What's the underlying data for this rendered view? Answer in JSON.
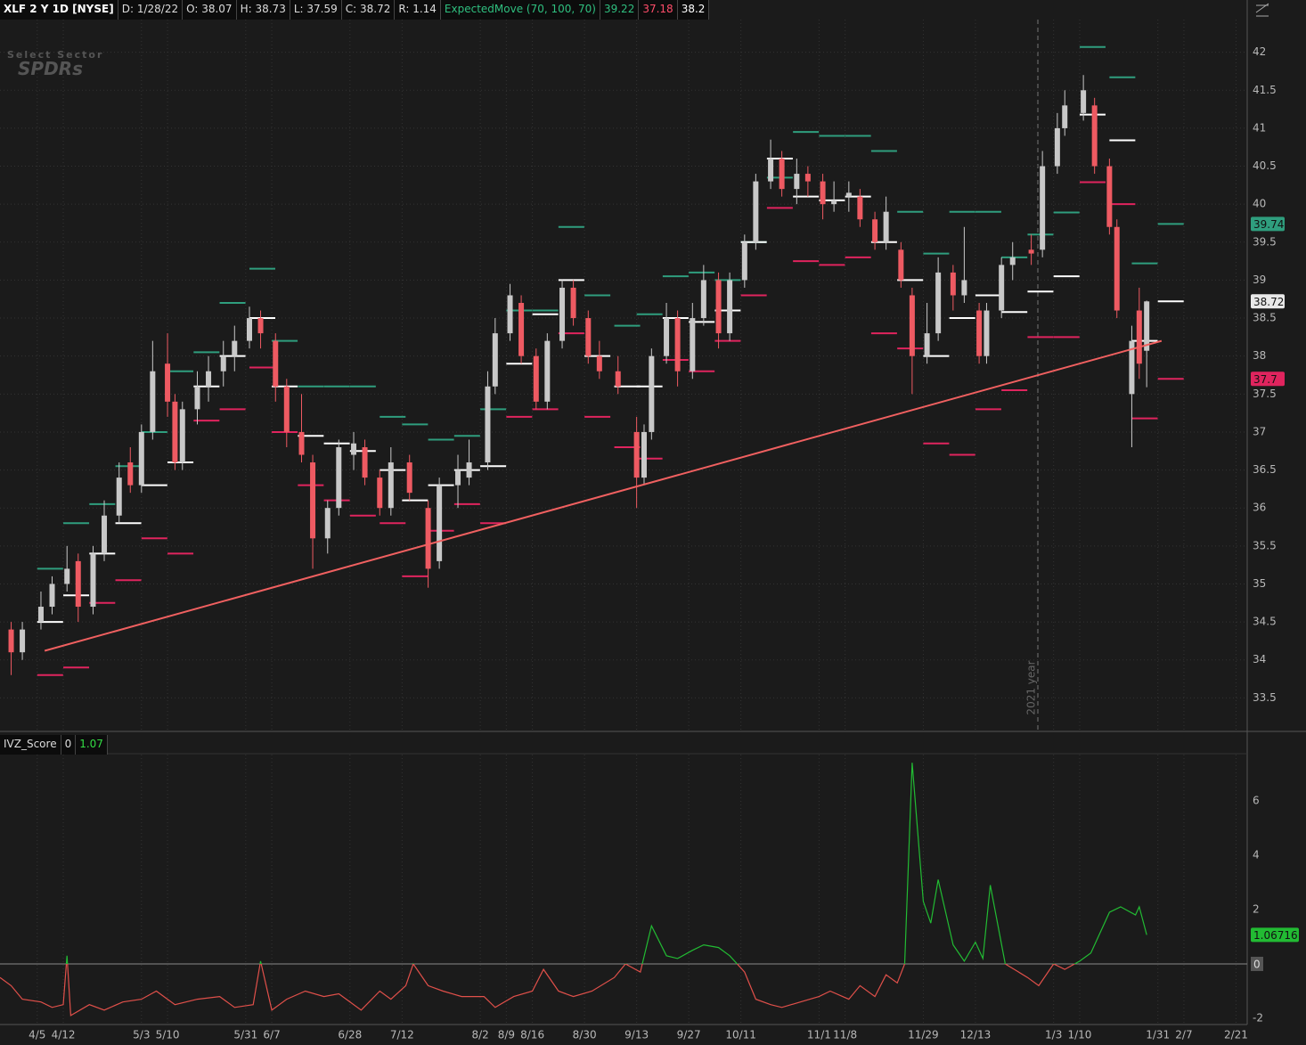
{
  "header": {
    "symbol": "XLF 2 Y 1D [NYSE]",
    "fields": [
      {
        "label": "D:",
        "value": "1/28/22"
      },
      {
        "label": "O:",
        "value": 38.07
      },
      {
        "label": "H:",
        "value": 38.73
      },
      {
        "label": "L:",
        "value": 37.59
      },
      {
        "label": "C:",
        "value": 38.72
      },
      {
        "label": "R:",
        "value": 1.14
      }
    ],
    "study": "ExpectedMove (70, 100, 70)",
    "study_values": [
      39.22,
      37.18,
      38.2
    ]
  },
  "logo": {
    "line1": "Select Sector",
    "line2": "SPDRs"
  },
  "chart_data": [
    {
      "type": "candlestick",
      "xlim": [
        "3/26",
        "2/24"
      ],
      "xticks": [
        "4/5",
        "4/12",
        "5/3",
        "5/10",
        "5/31",
        "6/7",
        "6/28",
        "7/12",
        "8/2",
        "8/9",
        "8/16",
        "8/30",
        "9/13",
        "9/27",
        "10/11",
        "11/1",
        "11/8",
        "11/29",
        "12/13",
        "1/3",
        "1/10",
        "1/31",
        "2/7",
        "2/21"
      ],
      "ylim": [
        33.07,
        42.43
      ],
      "yticks": [
        33.5,
        34,
        34.5,
        35,
        35.5,
        36,
        36.5,
        37,
        37.5,
        38,
        38.5,
        39,
        39.5,
        40,
        40.5,
        41,
        41.5,
        42
      ],
      "grid": true,
      "up_color": "#c8c8c8",
      "down_color": "#ee5a62",
      "x": [
        "3/29",
        "4/1",
        "4/6",
        "4/9",
        "4/13",
        "4/16",
        "4/20",
        "4/23",
        "4/27",
        "4/30",
        "5/3",
        "5/6",
        "5/10",
        "5/12",
        "5/14",
        "5/18",
        "5/21",
        "5/25",
        "5/28",
        "6/1",
        "6/4",
        "6/8",
        "6/11",
        "6/15",
        "6/18",
        "6/22",
        "6/25",
        "6/29",
        "7/2",
        "7/6",
        "7/9",
        "7/14",
        "7/19",
        "7/22",
        "7/27",
        "7/30",
        "8/4",
        "8/6",
        "8/10",
        "8/13",
        "8/17",
        "8/20",
        "8/24",
        "8/27",
        "8/31",
        "9/3",
        "9/8",
        "9/13",
        "9/15",
        "9/17",
        "9/21",
        "9/24",
        "9/28",
        "10/1",
        "10/5",
        "10/8",
        "10/12",
        "10/15",
        "10/19",
        "10/22",
        "10/26",
        "10/29",
        "11/2",
        "11/5",
        "11/9",
        "11/12",
        "11/16",
        "11/19",
        "11/23",
        "11/26",
        "11/30",
        "12/3",
        "12/7",
        "12/10",
        "12/14",
        "12/16",
        "12/20",
        "12/23",
        "12/28",
        "12/31",
        "1/4",
        "1/6",
        "1/11",
        "1/14",
        "1/18",
        "1/20",
        "1/24",
        "1/26",
        "1/28"
      ],
      "open": [
        34.4,
        34.1,
        34.5,
        34.7,
        35.0,
        35.3,
        34.7,
        35.4,
        35.9,
        36.6,
        36.3,
        37.0,
        37.9,
        37.4,
        36.6,
        37.3,
        37.6,
        37.8,
        38.0,
        38.2,
        38.5,
        38.2,
        37.6,
        37.0,
        36.6,
        35.6,
        36.0,
        36.7,
        36.8,
        36.4,
        36.0,
        36.6,
        36.0,
        35.3,
        36.3,
        36.4,
        36.6,
        37.6,
        38.3,
        38.7,
        38.0,
        37.4,
        38.2,
        38.9,
        38.5,
        38.0,
        37.8,
        37.0,
        36.4,
        37.0,
        38.0,
        38.5,
        37.8,
        38.5,
        39.0,
        38.3,
        39.0,
        39.5,
        40.3,
        40.6,
        40.2,
        40.4,
        40.3,
        40.0,
        40.1,
        40.1,
        39.8,
        39.5,
        39.4,
        38.8,
        38.0,
        38.3,
        39.1,
        38.8,
        38.6,
        38.0,
        38.6,
        39.2,
        39.4,
        39.4,
        40.5,
        41.0,
        41.2,
        41.3,
        40.5,
        39.7,
        37.5,
        38.6,
        38.07
      ],
      "high": [
        34.5,
        34.5,
        34.9,
        35.1,
        35.5,
        35.4,
        35.5,
        36.1,
        36.6,
        36.8,
        37.1,
        38.2,
        38.3,
        37.5,
        37.4,
        37.8,
        38.0,
        38.2,
        38.4,
        38.65,
        38.6,
        38.3,
        37.7,
        37.5,
        36.7,
        36.1,
        36.9,
        37.0,
        36.9,
        36.5,
        36.8,
        36.7,
        36.1,
        36.4,
        36.7,
        36.9,
        37.8,
        38.5,
        38.95,
        38.8,
        38.1,
        38.3,
        39.0,
        39.0,
        38.6,
        38.2,
        38.0,
        37.2,
        37.1,
        38.1,
        38.7,
        38.6,
        38.7,
        39.2,
        39.1,
        39.1,
        39.6,
        40.4,
        40.85,
        40.7,
        40.6,
        40.5,
        40.4,
        40.3,
        40.3,
        40.2,
        39.9,
        40.1,
        39.5,
        38.9,
        38.7,
        39.3,
        39.2,
        39.7,
        38.7,
        38.7,
        39.3,
        39.5,
        39.6,
        40.7,
        41.2,
        41.5,
        41.7,
        41.4,
        40.6,
        39.8,
        38.4,
        38.9,
        38.73
      ],
      "low": [
        33.8,
        34.0,
        34.4,
        34.6,
        34.9,
        34.5,
        34.6,
        35.3,
        35.8,
        36.2,
        36.2,
        36.9,
        37.2,
        36.5,
        36.5,
        37.1,
        37.4,
        37.6,
        37.8,
        38.1,
        38.1,
        37.4,
        36.8,
        36.6,
        35.2,
        35.4,
        35.9,
        36.5,
        36.3,
        35.9,
        35.9,
        36.1,
        34.95,
        35.2,
        36.0,
        36.3,
        36.5,
        37.5,
        38.2,
        37.9,
        37.3,
        37.3,
        38.1,
        38.4,
        37.9,
        37.7,
        37.5,
        36.0,
        36.3,
        36.9,
        37.9,
        37.6,
        37.7,
        38.4,
        38.1,
        38.2,
        38.9,
        39.4,
        40.2,
        40.1,
        40.0,
        40.1,
        39.8,
        39.9,
        39.9,
        39.7,
        39.4,
        39.4,
        38.9,
        37.5,
        37.9,
        38.2,
        38.6,
        38.7,
        37.9,
        37.9,
        38.5,
        39.0,
        39.2,
        39.3,
        40.4,
        40.9,
        41.1,
        40.4,
        39.6,
        38.5,
        36.8,
        37.7,
        37.59
      ],
      "close": [
        34.1,
        34.4,
        34.7,
        35.0,
        35.2,
        34.7,
        35.4,
        35.9,
        36.4,
        36.3,
        37.0,
        37.8,
        37.4,
        36.6,
        37.3,
        37.6,
        37.8,
        38.0,
        38.2,
        38.5,
        38.3,
        37.6,
        37.0,
        36.7,
        35.6,
        36.0,
        36.8,
        36.85,
        36.4,
        36.0,
        36.6,
        36.2,
        35.2,
        36.3,
        36.5,
        36.6,
        37.6,
        38.3,
        38.8,
        38.0,
        37.4,
        38.2,
        38.9,
        38.5,
        38.0,
        37.8,
        37.6,
        36.4,
        37.0,
        38.0,
        38.5,
        37.8,
        38.5,
        39.0,
        38.3,
        39.0,
        39.5,
        40.3,
        40.6,
        40.2,
        40.4,
        40.3,
        40.0,
        40.05,
        40.15,
        39.8,
        39.5,
        39.9,
        39.0,
        38.0,
        38.3,
        39.1,
        38.8,
        39.0,
        38.0,
        38.6,
        39.2,
        39.3,
        39.35,
        40.5,
        41.0,
        41.3,
        41.5,
        40.5,
        39.7,
        38.6,
        38.2,
        37.9,
        38.72
      ],
      "expected_move": {
        "x": [
          "4/5",
          "4/12",
          "4/19",
          "4/26",
          "5/3",
          "5/10",
          "5/17",
          "5/24",
          "6/1",
          "6/7",
          "6/14",
          "6/21",
          "6/28",
          "7/6",
          "7/12",
          "7/19",
          "7/26",
          "8/2",
          "8/9",
          "8/16",
          "8/23",
          "8/30",
          "9/7",
          "9/13",
          "9/20",
          "9/27",
          "10/4",
          "10/11",
          "10/18",
          "10/25",
          "11/1",
          "11/8",
          "11/15",
          "11/22",
          "11/29",
          "12/6",
          "12/13",
          "12/20",
          "12/27",
          "1/3",
          "1/10",
          "1/18",
          "1/24",
          "1/31"
        ],
        "upper": [
          35.2,
          35.8,
          36.05,
          36.55,
          37.0,
          37.8,
          38.05,
          38.7,
          39.15,
          38.2,
          37.6,
          37.6,
          37.6,
          37.2,
          37.1,
          36.9,
          36.95,
          37.3,
          38.6,
          38.6,
          39.7,
          38.8,
          38.4,
          38.55,
          39.05,
          39.1,
          39.0,
          39.5,
          40.35,
          40.95,
          40.9,
          40.9,
          40.7,
          39.9,
          39.35,
          39.9,
          39.9,
          39.3,
          39.6,
          39.89,
          42.07,
          41.67,
          39.22,
          39.74
        ],
        "mid": [
          34.5,
          34.85,
          35.4,
          35.8,
          36.3,
          36.6,
          37.6,
          38.0,
          38.5,
          37.6,
          36.95,
          36.85,
          36.75,
          36.5,
          36.1,
          36.3,
          36.5,
          36.55,
          37.9,
          38.55,
          39.0,
          38.0,
          37.6,
          37.6,
          38.5,
          38.45,
          38.6,
          39.5,
          40.6,
          40.1,
          40.05,
          40.1,
          39.5,
          39.0,
          38.0,
          38.5,
          38.8,
          38.58,
          38.85,
          39.05,
          41.18,
          40.84,
          38.2,
          38.72
        ],
        "lower": [
          33.8,
          33.9,
          34.75,
          35.05,
          35.6,
          35.4,
          37.15,
          37.3,
          37.85,
          37.0,
          36.3,
          36.1,
          35.9,
          35.8,
          35.1,
          35.7,
          36.05,
          35.8,
          37.2,
          37.3,
          38.3,
          37.2,
          36.8,
          36.65,
          37.95,
          37.8,
          38.2,
          38.8,
          39.95,
          39.25,
          39.2,
          39.3,
          38.3,
          38.1,
          36.85,
          36.7,
          37.3,
          37.55,
          38.25,
          38.25,
          40.29,
          40.0,
          37.18,
          37.7
        ],
        "upper_color": "#2f9e7e",
        "mid_color": "#ffffff",
        "lower_color": "#e0245e"
      },
      "trendline": {
        "x": [
          "4/7",
          "2/1"
        ],
        "values": [
          34.12,
          38.2
        ],
        "color": "#f06060"
      },
      "price_labels": [
        {
          "value": 39.74,
          "color": "#2f9e7e"
        },
        {
          "value": 38.72,
          "color": "#e8e8e8"
        },
        {
          "value": 37.7,
          "color": "#e0245e"
        }
      ],
      "annotation": "2021 year"
    },
    {
      "type": "line",
      "title": "IVZ_Score",
      "header_values": [
        0,
        1.07
      ],
      "xlim": [
        "3/26",
        "2/24"
      ],
      "ylim": [
        -2.23,
        7.7
      ],
      "yticks": [
        -2,
        0,
        2,
        4,
        6
      ],
      "grid": true,
      "series": [
        {
          "name": "IVZ_Score",
          "pos_color": "#22bb33",
          "neg_color": "#e0504a",
          "x": [
            "3/26",
            "3/29",
            "4/1",
            "4/6",
            "4/9",
            "4/12",
            "4/13",
            "4/14",
            "4/19",
            "4/23",
            "4/28",
            "5/3",
            "5/7",
            "5/12",
            "5/18",
            "5/24",
            "5/28",
            "6/2",
            "6/4",
            "6/7",
            "6/11",
            "6/16",
            "6/21",
            "6/25",
            "7/1",
            "7/6",
            "7/9",
            "7/13",
            "7/15",
            "7/19",
            "7/23",
            "7/28",
            "8/3",
            "8/6",
            "8/11",
            "8/16",
            "8/19",
            "8/23",
            "8/27",
            "9/1",
            "9/7",
            "9/10",
            "9/14",
            "9/17",
            "9/21",
            "9/24",
            "9/28",
            "10/1",
            "10/5",
            "10/8",
            "10/12",
            "10/15",
            "10/19",
            "10/22",
            "10/27",
            "11/1",
            "11/4",
            "11/9",
            "11/12",
            "11/16",
            "11/19",
            "11/22",
            "11/24",
            "11/26",
            "11/29",
            "12/1",
            "12/3",
            "12/7",
            "12/10",
            "12/13",
            "12/15",
            "12/17",
            "12/21",
            "12/27",
            "12/30",
            "1/3",
            "1/6",
            "1/10",
            "1/13",
            "1/18",
            "1/21",
            "1/25",
            "1/26",
            "1/28"
          ],
          "values": [
            -0.5,
            -0.8,
            -1.3,
            -1.4,
            -1.6,
            -1.5,
            0.3,
            -1.9,
            -1.5,
            -1.7,
            -1.4,
            -1.3,
            -1.0,
            -1.5,
            -1.3,
            -1.2,
            -1.6,
            -1.5,
            0.1,
            -1.7,
            -1.3,
            -1.0,
            -1.2,
            -1.1,
            -1.7,
            -1.0,
            -1.3,
            -0.8,
            0.0,
            -0.8,
            -1.0,
            -1.2,
            -1.2,
            -1.6,
            -1.2,
            -1.0,
            -0.2,
            -1.0,
            -1.2,
            -1.0,
            -0.5,
            0.0,
            -0.3,
            1.4,
            0.3,
            0.2,
            0.5,
            0.7,
            0.6,
            0.3,
            -0.3,
            -1.3,
            -1.5,
            -1.6,
            -1.4,
            -1.2,
            -1.0,
            -1.3,
            -0.8,
            -1.2,
            -0.4,
            -0.7,
            0.0,
            7.4,
            2.3,
            1.5,
            3.1,
            0.7,
            0.1,
            0.8,
            0.2,
            2.9,
            0.0,
            -0.5,
            -0.8,
            0.0,
            -0.2,
            0.1,
            0.4,
            1.9,
            2.1,
            1.8,
            2.1,
            1.06716
          ]
        }
      ]
    }
  ]
}
